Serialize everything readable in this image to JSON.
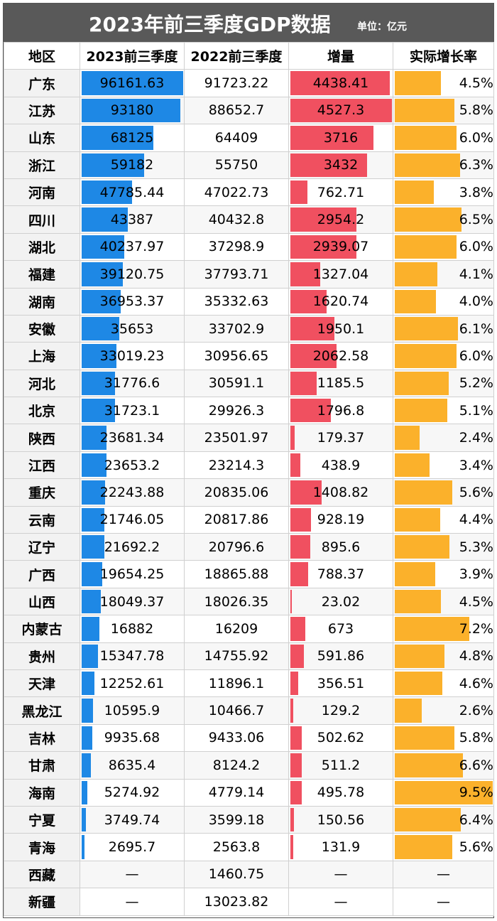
{
  "header": {
    "title": "2023年前三季度GDP数据",
    "unit": "单位：亿元"
  },
  "columns": [
    "地区",
    "2023前三季度",
    "2022前三季度",
    "增量",
    "实际增长率"
  ],
  "colors": {
    "gdp_bar": "#1e88e5",
    "increase_bar": "#f05060",
    "rate_bar": "#fbb12b",
    "title_bg": "#595959"
  },
  "chart_data": {
    "type": "table",
    "title": "2023年前三季度GDP数据",
    "unit": "亿元",
    "columns": [
      "地区",
      "2023前三季度",
      "2022前三季度",
      "增量",
      "实际增长率"
    ],
    "rows": [
      {
        "region": "广东",
        "gdp2023": "96161.63",
        "gdp2022": "91723.22",
        "increase": "4438.41",
        "rate": "4.5%"
      },
      {
        "region": "江苏",
        "gdp2023": "93180",
        "gdp2022": "88652.7",
        "increase": "4527.3",
        "rate": "5.8%"
      },
      {
        "region": "山东",
        "gdp2023": "68125",
        "gdp2022": "64409",
        "increase": "3716",
        "rate": "6.0%"
      },
      {
        "region": "浙江",
        "gdp2023": "59182",
        "gdp2022": "55750",
        "increase": "3432",
        "rate": "6.3%"
      },
      {
        "region": "河南",
        "gdp2023": "47785.44",
        "gdp2022": "47022.73",
        "increase": "762.71",
        "rate": "3.8%"
      },
      {
        "region": "四川",
        "gdp2023": "43387",
        "gdp2022": "40432.8",
        "increase": "2954.2",
        "rate": "6.5%"
      },
      {
        "region": "湖北",
        "gdp2023": "40237.97",
        "gdp2022": "37298.9",
        "increase": "2939.07",
        "rate": "6.0%"
      },
      {
        "region": "福建",
        "gdp2023": "39120.75",
        "gdp2022": "37793.71",
        "increase": "1327.04",
        "rate": "4.1%"
      },
      {
        "region": "湖南",
        "gdp2023": "36953.37",
        "gdp2022": "35332.63",
        "increase": "1620.74",
        "rate": "4.0%"
      },
      {
        "region": "安徽",
        "gdp2023": "35653",
        "gdp2022": "33702.9",
        "increase": "1950.1",
        "rate": "6.1%"
      },
      {
        "region": "上海",
        "gdp2023": "33019.23",
        "gdp2022": "30956.65",
        "increase": "2062.58",
        "rate": "6.0%"
      },
      {
        "region": "河北",
        "gdp2023": "31776.6",
        "gdp2022": "30591.1",
        "increase": "1185.5",
        "rate": "5.2%"
      },
      {
        "region": "北京",
        "gdp2023": "31723.1",
        "gdp2022": "29926.3",
        "increase": "1796.8",
        "rate": "5.1%"
      },
      {
        "region": "陕西",
        "gdp2023": "23681.34",
        "gdp2022": "23501.97",
        "increase": "179.37",
        "rate": "2.4%"
      },
      {
        "region": "江西",
        "gdp2023": "23653.2",
        "gdp2022": "23214.3",
        "increase": "438.9",
        "rate": "3.4%"
      },
      {
        "region": "重庆",
        "gdp2023": "22243.88",
        "gdp2022": "20835.06",
        "increase": "1408.82",
        "rate": "5.6%"
      },
      {
        "region": "云南",
        "gdp2023": "21746.05",
        "gdp2022": "20817.86",
        "increase": "928.19",
        "rate": "4.4%"
      },
      {
        "region": "辽宁",
        "gdp2023": "21692.2",
        "gdp2022": "20796.6",
        "increase": "895.6",
        "rate": "5.3%"
      },
      {
        "region": "广西",
        "gdp2023": "19654.25",
        "gdp2022": "18865.88",
        "increase": "788.37",
        "rate": "3.9%"
      },
      {
        "region": "山西",
        "gdp2023": "18049.37",
        "gdp2022": "18026.35",
        "increase": "23.02",
        "rate": "4.5%"
      },
      {
        "region": "内蒙古",
        "gdp2023": "16882",
        "gdp2022": "16209",
        "increase": "673",
        "rate": "7.2%"
      },
      {
        "region": "贵州",
        "gdp2023": "15347.78",
        "gdp2022": "14755.92",
        "increase": "591.86",
        "rate": "4.8%"
      },
      {
        "region": "天津",
        "gdp2023": "12252.61",
        "gdp2022": "11896.1",
        "increase": "356.51",
        "rate": "4.6%"
      },
      {
        "region": "黑龙江",
        "gdp2023": "10595.9",
        "gdp2022": "10466.7",
        "increase": "129.2",
        "rate": "2.6%"
      },
      {
        "region": "吉林",
        "gdp2023": "9935.68",
        "gdp2022": "9433.06",
        "increase": "502.62",
        "rate": "5.8%"
      },
      {
        "region": "甘肃",
        "gdp2023": "8635.4",
        "gdp2022": "8124.2",
        "increase": "511.2",
        "rate": "6.6%"
      },
      {
        "region": "海南",
        "gdp2023": "5274.92",
        "gdp2022": "4779.14",
        "increase": "495.78",
        "rate": "9.5%"
      },
      {
        "region": "宁夏",
        "gdp2023": "3749.74",
        "gdp2022": "3599.18",
        "increase": "150.56",
        "rate": "6.4%"
      },
      {
        "region": "青海",
        "gdp2023": "2695.7",
        "gdp2022": "2563.8",
        "increase": "131.9",
        "rate": "5.6%"
      },
      {
        "region": "西藏",
        "gdp2023": "—",
        "gdp2022": "1460.75",
        "increase": "—",
        "rate": "—"
      },
      {
        "region": "新疆",
        "gdp2023": "—",
        "gdp2022": "13023.82",
        "increase": "—",
        "rate": "—"
      }
    ]
  }
}
